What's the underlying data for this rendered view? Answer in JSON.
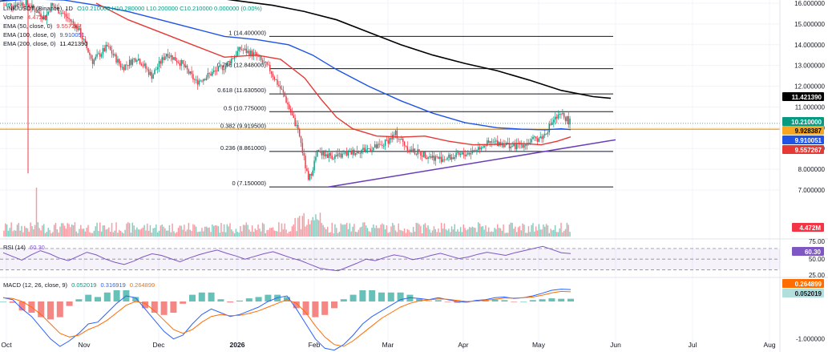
{
  "header": {
    "symbol": "LINK/USDT (Binance), 1D",
    "ohlc_text": "O10.210000 H10.280000 L10.200000 C10.210000 0.000000 (0.00%)",
    "volume_label": "Volume",
    "volume_value": "4.472M",
    "indicators": [
      {
        "label": "EMA (50, close, 0)",
        "value": "9.557267",
        "color": "#e53935"
      },
      {
        "label": "EMA (100, close, 0)",
        "value": "9.910051",
        "color": "#1e53e5"
      },
      {
        "label": "EMA (200, close, 0)",
        "value": "11.421390",
        "color": "#000000"
      }
    ]
  },
  "chart_data": {
    "type": "line",
    "title": "LINK/USDT (Binance), 1D",
    "price_axis": {
      "ticks": [
        "16.000000",
        "15.000000",
        "14.000000",
        "13.000000",
        "12.000000",
        "11.000000",
        "10.000000",
        "9.000000",
        "8.000000",
        "7.000000"
      ],
      "range": [
        6.4,
        16.1
      ],
      "scale": "linear"
    },
    "x_axis": {
      "labels": [
        "Oct",
        "Nov",
        "Dec",
        "2026",
        "Feb",
        "Mar",
        "Apr",
        "May",
        "Jun",
        "Jul",
        "Aug"
      ]
    },
    "fibonacci": [
      {
        "level": "1",
        "price": 14.4,
        "label": "1 (14.400000)"
      },
      {
        "level": "0.786",
        "price": 12.848,
        "label": "0.786 (12.848000)"
      },
      {
        "level": "0.618",
        "price": 11.6305,
        "label": "0.618 (11.630500)"
      },
      {
        "level": "0.5",
        "price": 10.775,
        "label": "0.5 (10.775000)"
      },
      {
        "level": "0.382",
        "price": 9.9195,
        "label": "0.382 (9.919500)"
      },
      {
        "level": "0.236",
        "price": 8.861,
        "label": "0.236 (8.861000)"
      },
      {
        "level": "0",
        "price": 7.15,
        "label": "0 (7.150000)"
      }
    ],
    "horizontal_line": {
      "price": 9.928387,
      "color": "#f5a623"
    },
    "trendline": {
      "from": {
        "date": "2026-02-06",
        "price": 7.15
      },
      "to": {
        "date": "2026-06-01",
        "price": 9.42
      },
      "color": "#6a3cb8"
    },
    "series": [
      {
        "name": "EMA (200, close, 0)",
        "color": "#000000",
        "points": [
          [
            0,
            16.1
          ],
          [
            40,
            16.3
          ],
          [
            80,
            16.4
          ],
          [
            120,
            16.5
          ],
          [
            200,
            16.5
          ],
          [
            260,
            16.3
          ],
          [
            300,
            16.1
          ],
          [
            340,
            15.9
          ],
          [
            380,
            15.6
          ],
          [
            420,
            15.2
          ],
          [
            460,
            14.6
          ],
          [
            500,
            14.0
          ],
          [
            540,
            13.5
          ],
          [
            580,
            13.1
          ],
          [
            620,
            12.75
          ],
          [
            660,
            12.3
          ],
          [
            700,
            11.8
          ],
          [
            740,
            11.5
          ],
          [
            762,
            11.42
          ]
        ]
      },
      {
        "name": "EMA (100, close, 0)",
        "color": "#1e53e5",
        "points": [
          [
            0,
            16.1
          ],
          [
            40,
            16.2
          ],
          [
            80,
            16.15
          ],
          [
            120,
            15.9
          ],
          [
            160,
            15.6
          ],
          [
            200,
            15.2
          ],
          [
            240,
            14.8
          ],
          [
            280,
            14.4
          ],
          [
            320,
            14.25
          ],
          [
            360,
            14.0
          ],
          [
            390,
            13.5
          ],
          [
            420,
            12.8
          ],
          [
            460,
            12.0
          ],
          [
            500,
            11.3
          ],
          [
            540,
            10.7
          ],
          [
            580,
            10.25
          ],
          [
            620,
            10.0
          ],
          [
            650,
            9.93
          ],
          [
            680,
            9.9
          ],
          [
            700,
            9.95
          ],
          [
            712,
            9.91
          ]
        ]
      },
      {
        "name": "EMA (50, close, 0)",
        "color": "#e53935",
        "points": [
          [
            120,
            16.0
          ],
          [
            160,
            15.2
          ],
          [
            200,
            14.6
          ],
          [
            240,
            14.0
          ],
          [
            280,
            13.4
          ],
          [
            320,
            13.5
          ],
          [
            350,
            13.3
          ],
          [
            380,
            12.4
          ],
          [
            400,
            11.4
          ],
          [
            420,
            10.5
          ],
          [
            440,
            9.95
          ],
          [
            470,
            9.6
          ],
          [
            500,
            9.55
          ],
          [
            530,
            9.6
          ],
          [
            560,
            9.35
          ],
          [
            590,
            9.18
          ],
          [
            620,
            9.2
          ],
          [
            650,
            9.25
          ],
          [
            675,
            9.18
          ],
          [
            695,
            9.35
          ],
          [
            712,
            9.56
          ]
        ]
      }
    ],
    "price_labels": [
      {
        "text": "11.421390",
        "price": 11.42139,
        "bg": "#000000",
        "fg": "#ffffff"
      },
      {
        "text": "10.210000",
        "price": 10.21,
        "bg": "#089981",
        "fg": "#ffffff"
      },
      {
        "text": "9.928387",
        "price": 9.928387,
        "bg": "#f5a623",
        "fg": "#000000"
      },
      {
        "text": "9.910051",
        "price": 9.910051,
        "bg": "#1e53e5",
        "fg": "#ffffff"
      },
      {
        "text": "9.557267",
        "price": 9.557267,
        "bg": "#e53935",
        "fg": "#ffffff"
      }
    ],
    "volume_label": {
      "text": "4.472M",
      "bg": "#f23645",
      "fg": "#ffffff"
    },
    "rsi": {
      "label": "RSI (14)",
      "value": "60.30",
      "value_color": "#7e57c2",
      "axis_ticks": [
        "75.00",
        "50.00",
        "25.00"
      ],
      "bands": [
        70,
        50,
        30
      ],
      "values": [
        62,
        55,
        48,
        58,
        66,
        60,
        52,
        47,
        55,
        63,
        58,
        50,
        44,
        40,
        46,
        54,
        60,
        57,
        51,
        45,
        52,
        58,
        63,
        67,
        61,
        56,
        50,
        55,
        60,
        64,
        58,
        52,
        47,
        40,
        33,
        30,
        28,
        35,
        42,
        50,
        47,
        53,
        58,
        55,
        49,
        52,
        57,
        61,
        56,
        51,
        54,
        59,
        63,
        60,
        57,
        62,
        66,
        70,
        74,
        68,
        62,
        60.3
      ]
    },
    "macd": {
      "label": "MACD (12, 26, close, 9)",
      "values_text": [
        "0.052019",
        "0.316919",
        "0.264899"
      ],
      "value_colors": [
        "#089981",
        "#2962ff",
        "#ff6d00"
      ],
      "axis_ticks": [
        "-1.000000"
      ],
      "labels": [
        {
          "text": "0.264899",
          "bg": "#ff6d00"
        },
        {
          "text": "0.052019",
          "bg": "#b2dfdb"
        }
      ],
      "macd_line": [
        0.1,
        0.05,
        -0.2,
        -0.4,
        -0.7,
        -1.0,
        -1.2,
        -1.05,
        -0.85,
        -0.6,
        -0.55,
        -0.3,
        -0.05,
        0.15,
        0.1,
        -0.2,
        -0.5,
        -0.8,
        -1.0,
        -0.9,
        -0.6,
        -0.35,
        -0.2,
        -0.3,
        -0.4,
        -0.35,
        -0.25,
        -0.15,
        0.0,
        0.1,
        0.15,
        -0.2,
        -0.6,
        -1.0,
        -1.25,
        -1.3,
        -1.15,
        -0.9,
        -0.6,
        -0.4,
        -0.25,
        -0.1,
        0.05,
        0.1,
        0.08,
        0.05,
        0.1,
        0.05,
        0.0,
        -0.02,
        0.03,
        0.05,
        0.1,
        0.12,
        0.08,
        0.1,
        0.15,
        0.22,
        0.3,
        0.33,
        0.32
      ],
      "signal_line": [
        0.1,
        0.08,
        0.0,
        -0.15,
        -0.35,
        -0.6,
        -0.85,
        -0.95,
        -0.9,
        -0.75,
        -0.65,
        -0.5,
        -0.3,
        -0.1,
        0.0,
        -0.05,
        -0.25,
        -0.5,
        -0.75,
        -0.85,
        -0.75,
        -0.55,
        -0.4,
        -0.35,
        -0.38,
        -0.37,
        -0.32,
        -0.25,
        -0.15,
        -0.05,
        0.05,
        -0.05,
        -0.3,
        -0.65,
        -0.95,
        -1.15,
        -1.2,
        -1.05,
        -0.85,
        -0.65,
        -0.45,
        -0.3,
        -0.15,
        -0.05,
        0.02,
        0.04,
        0.07,
        0.06,
        0.03,
        0.0,
        0.01,
        0.03,
        0.06,
        0.09,
        0.09,
        0.1,
        0.12,
        0.17,
        0.23,
        0.27,
        0.26
      ]
    }
  }
}
